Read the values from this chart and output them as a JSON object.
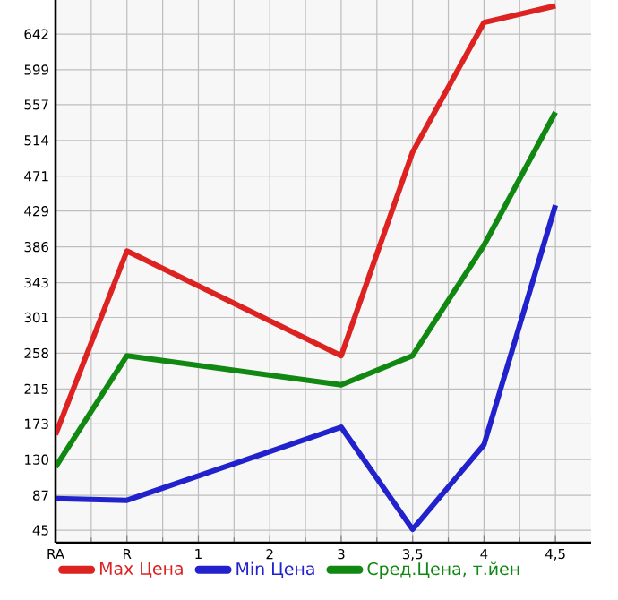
{
  "chart_data": {
    "type": "line",
    "categories": [
      "RA",
      "R",
      "1",
      "2",
      "3",
      "3,5",
      "4",
      "4,5"
    ],
    "series": [
      {
        "name": "Max Цена",
        "color": "#dd2222",
        "values": [
          160,
          381,
          null,
          null,
          255,
          500,
          656,
          676
        ]
      },
      {
        "name": "Min Цена",
        "color": "#2222cc",
        "values": [
          83,
          81,
          null,
          null,
          169,
          46,
          148,
          436
        ]
      },
      {
        "name": "Сред.Цена, т.йен",
        "color": "#118811",
        "values": [
          121,
          255,
          null,
          null,
          220,
          255,
          388,
          548
        ]
      }
    ],
    "ylim": [
      30,
      683
    ],
    "yticks": [
      45,
      87,
      130,
      173,
      215,
      258,
      301,
      343,
      386,
      429,
      471,
      514,
      557,
      599,
      642
    ],
    "grid": true,
    "legend": "bottom",
    "marker": "none",
    "line_style": "solid"
  }
}
